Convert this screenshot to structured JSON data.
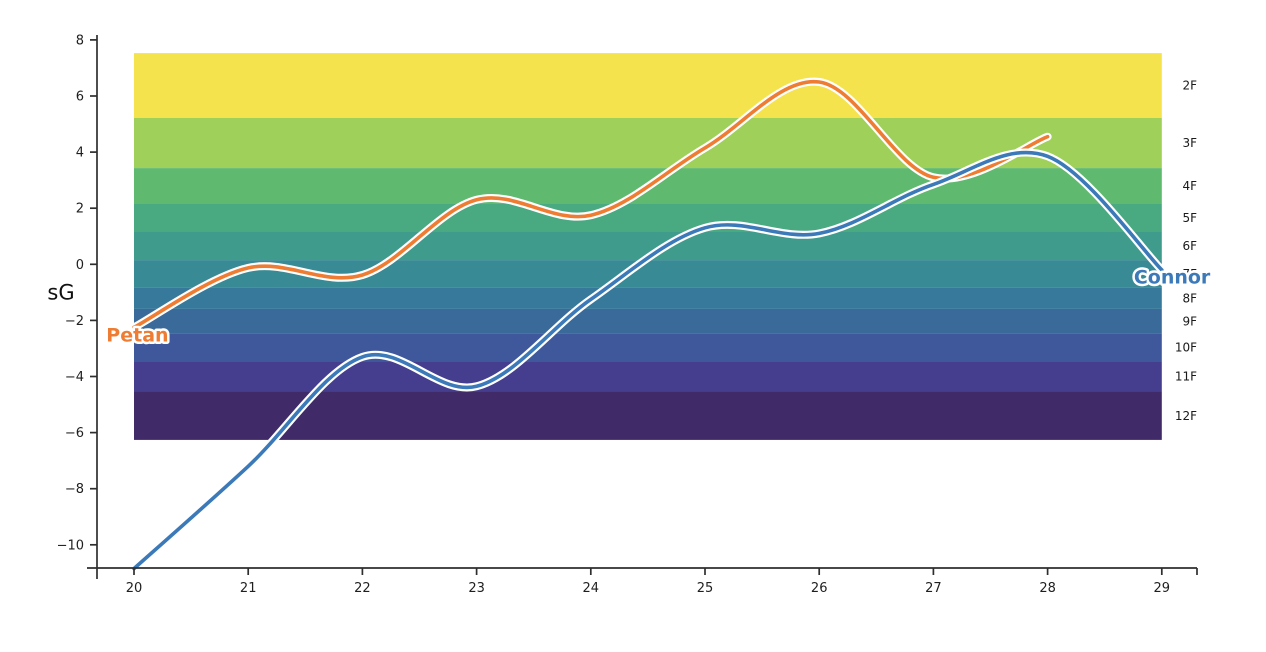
{
  "figure": {
    "background": "#ffffff",
    "axis_color": "#2e2e2e",
    "tick_label_color": "#1f1f1f",
    "band_label_color": "#1a1a1a"
  },
  "chart_data": {
    "type": "line",
    "title": "",
    "xlabel": "",
    "ylabel": "sG",
    "grid": false,
    "legend_position": "inline-labels",
    "xlim": [
      19.68,
      29.31
    ],
    "ylim": [
      -11.2,
      8.2
    ],
    "x_ticks": {
      "values": [
        20,
        21,
        22,
        23,
        24,
        25,
        26,
        27,
        28,
        29
      ],
      "labels": [
        "20",
        "21",
        "22",
        "23",
        "24",
        "25",
        "26",
        "27",
        "28",
        "29"
      ]
    },
    "y_ticks": {
      "values": [
        8,
        6,
        4,
        2,
        0,
        -2,
        -4,
        -6,
        -8,
        -10
      ],
      "labels": [
        "8",
        "6",
        "4",
        "2",
        "0",
        "−2",
        "−4",
        "−6",
        "−8",
        "−10"
      ]
    },
    "bands": {
      "x_range": [
        20,
        29
      ],
      "items": [
        {
          "label": "2F",
          "from": 5.22,
          "to": 7.53,
          "color": "#f5e34e"
        },
        {
          "label": "3F",
          "from": 3.43,
          "to": 5.22,
          "color": "#9ed05a"
        },
        {
          "label": "4F",
          "from": 2.15,
          "to": 3.43,
          "color": "#5fb96e"
        },
        {
          "label": "5F",
          "from": 1.15,
          "to": 2.15,
          "color": "#49a981"
        },
        {
          "label": "6F",
          "from": 0.15,
          "to": 1.15,
          "color": "#3f9c8d"
        },
        {
          "label": "7F",
          "from": -0.84,
          "to": 0.15,
          "color": "#388b95"
        },
        {
          "label": "8F",
          "from": -1.59,
          "to": -0.84,
          "color": "#37799a"
        },
        {
          "label": "9F",
          "from": -2.48,
          "to": -1.59,
          "color": "#3a6a9a"
        },
        {
          "label": "10F",
          "from": -3.45,
          "to": -2.48,
          "color": "#3f589b"
        },
        {
          "label": "11F",
          "from": -4.55,
          "to": -3.45,
          "color": "#453e8e"
        },
        {
          "label": "12F",
          "from": -6.26,
          "to": -4.55,
          "color": "#402a68"
        }
      ]
    },
    "series": [
      {
        "name": "Petan",
        "color": "#ee7d33",
        "label_pos": {
          "x": 20.03,
          "y": -2.52
        },
        "points": [
          [
            20,
            -2.25
          ],
          [
            21,
            -0.13
          ],
          [
            22,
            -0.38
          ],
          [
            23,
            2.3
          ],
          [
            24,
            1.75
          ],
          [
            25,
            4.15
          ],
          [
            26,
            6.5
          ],
          [
            27,
            3.1
          ],
          [
            28,
            4.55
          ]
        ]
      },
      {
        "name": "Connor",
        "color": "#3b79b8",
        "label_pos": {
          "x": 29.09,
          "y": -0.45
        },
        "points": [
          [
            20,
            -10.85
          ],
          [
            21,
            -7.2
          ],
          [
            22,
            -3.3
          ],
          [
            23,
            -4.35
          ],
          [
            24,
            -1.25
          ],
          [
            25,
            1.3
          ],
          [
            26,
            1.1
          ],
          [
            27,
            2.85
          ],
          [
            28,
            3.85
          ],
          [
            29,
            -0.2
          ]
        ]
      }
    ]
  }
}
